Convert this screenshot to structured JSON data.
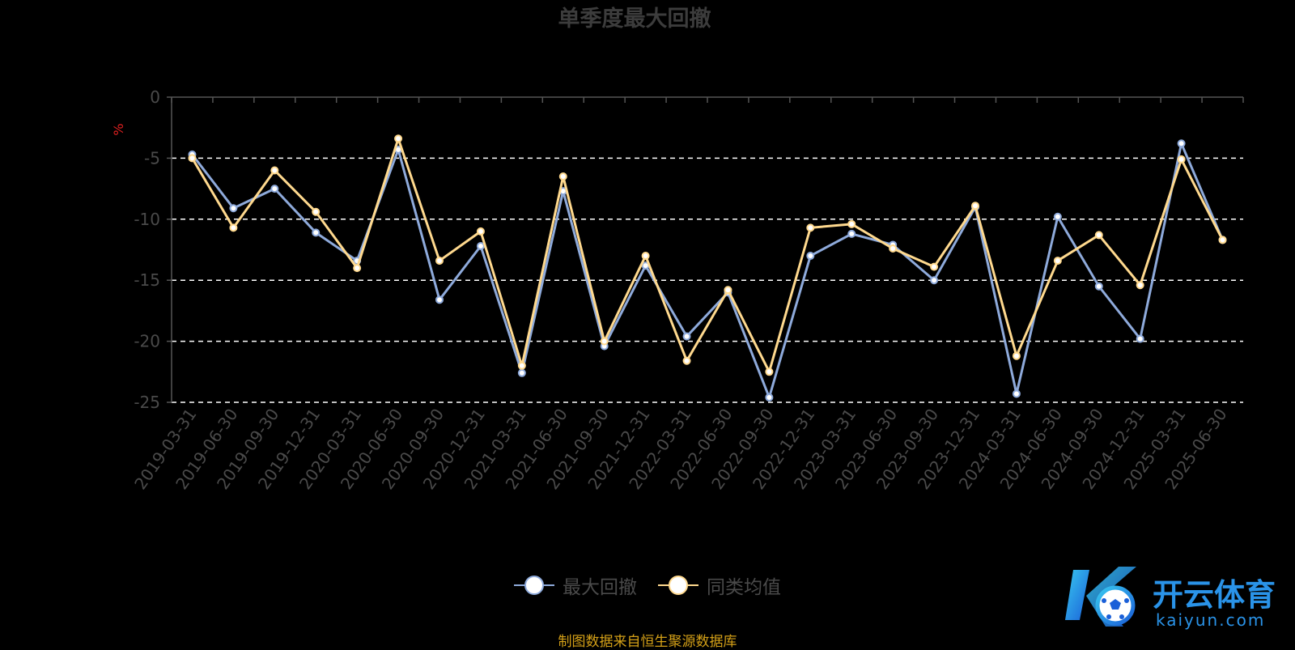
{
  "chart_data": {
    "type": "line",
    "title": "单季度最大回撤",
    "ylabel": "%",
    "ylim": [
      -25,
      0
    ],
    "yticks": [
      "0",
      "-5",
      "-10",
      "-15",
      "-20",
      "-25"
    ],
    "grid": true,
    "legend_position": "bottom-center",
    "categories": [
      "2019-03-31",
      "2019-06-30",
      "2019-09-30",
      "2019-12-31",
      "2020-03-31",
      "2020-06-30",
      "2020-09-30",
      "2020-12-31",
      "2021-03-31",
      "2021-06-30",
      "2021-09-30",
      "2021-12-31",
      "2022-03-31",
      "2022-06-30",
      "2022-09-30",
      "2022-12-31",
      "2023-03-31",
      "2023-06-30",
      "2023-09-30",
      "2023-12-31",
      "2024-03-31",
      "2024-06-30",
      "2024-09-30",
      "2024-12-31",
      "2025-03-31",
      "2025-06-30"
    ],
    "series": [
      {
        "name": "最大回撤",
        "color": "#8eaadb",
        "values": [
          -4.7,
          -9.1,
          -7.5,
          -11.1,
          -13.4,
          -4.3,
          -16.6,
          -12.2,
          -22.6,
          -7.7,
          -20.4,
          -13.8,
          -19.6,
          -16.0,
          -24.6,
          -13.0,
          -11.2,
          -12.1,
          -15.0,
          -9.0,
          -24.3,
          -9.8,
          -15.5,
          -19.8,
          -3.8,
          -11.7
        ]
      },
      {
        "name": "同类均值",
        "color": "#ffd98e",
        "values": [
          -5.0,
          -10.7,
          -6.0,
          -9.4,
          -14.0,
          -3.4,
          -13.4,
          -11.0,
          -22.0,
          -6.5,
          -20.0,
          -13.0,
          -21.6,
          -15.8,
          -22.5,
          -10.7,
          -10.4,
          -12.4,
          -13.9,
          -8.9,
          -21.2,
          -13.4,
          -11.3,
          -15.4,
          -5.1,
          -11.7
        ]
      }
    ]
  },
  "legend": {
    "item1": "最大回撤",
    "item2": "同类均值"
  },
  "source_note": "制图数据来自恒生聚源数据库",
  "logo": {
    "name": "开云体育",
    "sub": "kaiyun.com"
  },
  "colors": {
    "background": "#000000",
    "series1": "#8eaadb",
    "series2": "#ffd98e",
    "grid": "#ffffff",
    "axis": "#555555"
  }
}
